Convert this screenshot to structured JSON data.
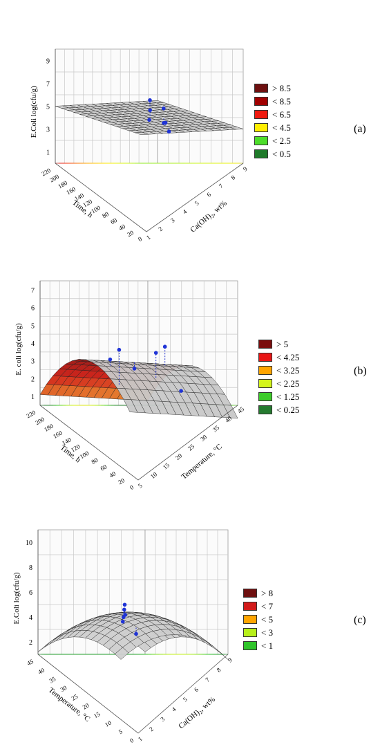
{
  "chart_data": [
    {
      "type": "surface3d",
      "panel_label": "(a)",
      "zlabel": "E.Coli  log(cfu/g)",
      "xlabel": "Time, h",
      "ylabel": "Ca(OH)₂, wt%",
      "z_ticks": [
        "1",
        "3",
        "5",
        "7",
        "9"
      ],
      "x_ticks": [
        "0",
        "20",
        "40",
        "60",
        "80",
        "100",
        "120",
        "140",
        "160",
        "180",
        "200",
        "220"
      ],
      "y_ticks": [
        "1",
        "2",
        "3",
        "4",
        "5",
        "6",
        "7",
        "8",
        "9"
      ],
      "legend": [
        {
          "label": "> 8.5",
          "color": "#6e1010"
        },
        {
          "label": "< 8.5",
          "color": "#a00000"
        },
        {
          "label": "< 6.5",
          "color": "#f01a10"
        },
        {
          "label": "< 4.5",
          "color": "#ffee00"
        },
        {
          "label": "< 2.5",
          "color": "#4ddd2a"
        },
        {
          "label": "< 0.5",
          "color": "#1f7a2a"
        }
      ]
    },
    {
      "type": "surface3d",
      "panel_label": "(b)",
      "zlabel": "E. coli  log(cfu/g)",
      "xlabel": "Time, h",
      "ylabel": "Temperature, °C",
      "z_ticks": [
        "1",
        "2",
        "3",
        "4",
        "5",
        "6",
        "7"
      ],
      "x_ticks": [
        "0",
        "20",
        "40",
        "60",
        "80",
        "100",
        "120",
        "140",
        "160",
        "180",
        "200",
        "220"
      ],
      "y_ticks": [
        "5",
        "10",
        "15",
        "20",
        "25",
        "30",
        "35",
        "40",
        "45"
      ],
      "legend": [
        {
          "label": "> 5",
          "color": "#7a0d0d"
        },
        {
          "label": "< 4.25",
          "color": "#e81515"
        },
        {
          "label": "< 3.25",
          "color": "#ffa500"
        },
        {
          "label": "< 2.25",
          "color": "#d4f51a"
        },
        {
          "label": "< 1.25",
          "color": "#3dcc2a"
        },
        {
          "label": "< 0.25",
          "color": "#257a2f"
        }
      ]
    },
    {
      "type": "surface3d",
      "panel_label": "(c)",
      "zlabel": "E.Coli  log(cfu/g)",
      "xlabel": "Temperature, °C",
      "ylabel": "Ca(OH)₂, wt%",
      "z_ticks": [
        "2",
        "4",
        "6",
        "8",
        "10"
      ],
      "x_ticks": [
        "0",
        "5",
        "10",
        "15",
        "20",
        "25",
        "30",
        "35",
        "40",
        "45"
      ],
      "y_ticks": [
        "1",
        "2",
        "3",
        "4",
        "5",
        "6",
        "7",
        "8",
        "9"
      ],
      "legend": [
        {
          "label": "> 8",
          "color": "#6e1010"
        },
        {
          "label": "< 7",
          "color": "#d21a1a"
        },
        {
          "label": "< 5",
          "color": "#ffa500"
        },
        {
          "label": "< 3",
          "color": "#b7f01a"
        },
        {
          "label": "< 1",
          "color": "#2fc42a"
        }
      ]
    }
  ]
}
